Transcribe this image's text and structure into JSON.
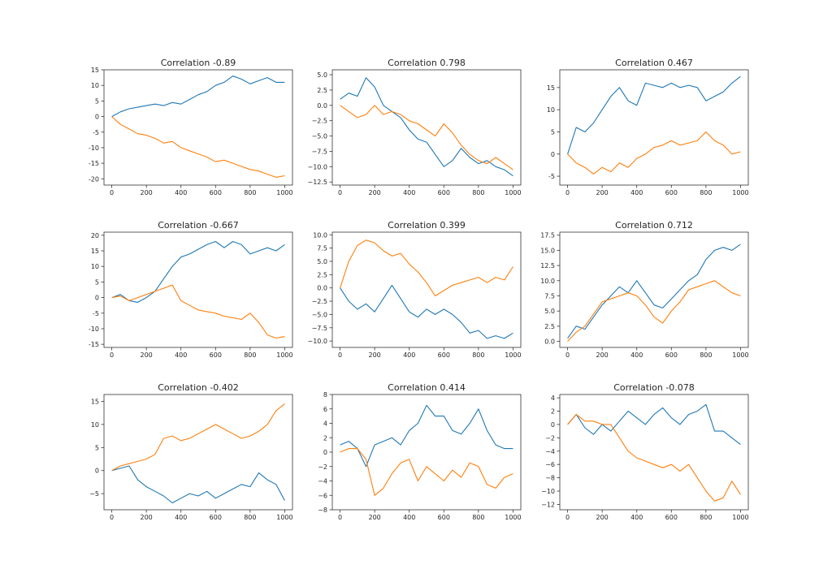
{
  "colors": {
    "series_1": "#1f77b4",
    "series_2": "#ff7f0e"
  },
  "chart_data": [
    {
      "type": "line",
      "title": "Correlation -0.89",
      "xlim": [
        -45,
        1045
      ],
      "ylim": [
        -22,
        15
      ],
      "xticks": [
        0,
        200,
        400,
        600,
        800,
        1000
      ],
      "yticks": [
        -20,
        -15,
        -10,
        -5,
        0,
        5,
        10,
        15
      ],
      "x": [
        0,
        50,
        100,
        150,
        200,
        250,
        300,
        350,
        400,
        450,
        500,
        550,
        600,
        650,
        700,
        750,
        800,
        850,
        900,
        950,
        1000
      ],
      "series": [
        {
          "values": [
            0,
            1.5,
            2.5,
            3,
            3.5,
            4,
            3.5,
            4.5,
            4,
            5.5,
            7,
            8,
            10,
            11,
            13,
            12,
            10.5,
            11.5,
            12.5,
            11,
            11
          ]
        },
        {
          "values": [
            0,
            -2.5,
            -4,
            -5.5,
            -6,
            -7,
            -8.5,
            -8,
            -10,
            -11,
            -12,
            -13,
            -14.5,
            -14,
            -15,
            -16,
            -17,
            -17.5,
            -18.5,
            -19.5,
            -19
          ]
        }
      ]
    },
    {
      "type": "line",
      "title": "Correlation 0.798",
      "xlim": [
        -45,
        1045
      ],
      "ylim": [
        -13,
        5.8
      ],
      "xticks": [
        0,
        200,
        400,
        600,
        800,
        1000
      ],
      "yticks": [
        -12.5,
        -10.0,
        -7.5,
        -5.0,
        -2.5,
        0.0,
        2.5,
        5.0
      ],
      "ytick_labels": [
        "−12.5",
        "−10.0",
        "−7.5",
        "−5.0",
        "−2.5",
        "0.0",
        "2.5",
        "5.0"
      ],
      "x": [
        0,
        50,
        100,
        150,
        200,
        250,
        300,
        350,
        400,
        450,
        500,
        550,
        600,
        650,
        700,
        750,
        800,
        850,
        900,
        950,
        1000
      ],
      "series": [
        {
          "values": [
            1,
            2,
            1.5,
            4.5,
            3,
            0,
            -1,
            -2,
            -4,
            -5.5,
            -6,
            -8,
            -10,
            -9,
            -7,
            -8.5,
            -9.5,
            -9,
            -10,
            -10.5,
            -11.5
          ]
        },
        {
          "values": [
            0,
            -1,
            -2,
            -1.5,
            0,
            -1.5,
            -1,
            -1.5,
            -2.5,
            -3,
            -4,
            -5,
            -3,
            -4.5,
            -6.5,
            -8,
            -9,
            -9.5,
            -8.5,
            -9.5,
            -10.5
          ]
        }
      ]
    },
    {
      "type": "line",
      "title": "Correlation 0.467",
      "xlim": [
        -45,
        1045
      ],
      "ylim": [
        -7,
        19
      ],
      "xticks": [
        0,
        200,
        400,
        600,
        800,
        1000
      ],
      "yticks": [
        -5,
        0,
        5,
        10,
        15
      ],
      "x": [
        0,
        50,
        100,
        150,
        200,
        250,
        300,
        350,
        400,
        450,
        500,
        550,
        600,
        650,
        700,
        750,
        800,
        850,
        900,
        950,
        1000
      ],
      "series": [
        {
          "values": [
            0,
            6,
            5,
            7,
            10,
            13,
            15,
            12,
            11,
            16,
            15.5,
            15,
            16,
            15,
            15.5,
            15,
            12,
            13,
            14,
            16,
            17.5
          ]
        },
        {
          "values": [
            0,
            -2,
            -3,
            -4.5,
            -3,
            -4,
            -2,
            -3,
            -1,
            0,
            1.5,
            2,
            3,
            2,
            2.5,
            3,
            5,
            3,
            2,
            0,
            0.5
          ]
        }
      ]
    },
    {
      "type": "line",
      "title": "Correlation -0.667",
      "xlim": [
        -45,
        1045
      ],
      "ylim": [
        -16,
        21
      ],
      "xticks": [
        0,
        200,
        400,
        600,
        800,
        1000
      ],
      "yticks": [
        -15,
        -10,
        -5,
        0,
        5,
        10,
        15,
        20
      ],
      "x": [
        0,
        50,
        100,
        150,
        200,
        250,
        300,
        350,
        400,
        450,
        500,
        550,
        600,
        650,
        700,
        750,
        800,
        850,
        900,
        950,
        1000
      ],
      "series": [
        {
          "values": [
            0,
            1,
            -1,
            -1.5,
            0,
            2,
            6,
            10,
            13,
            14,
            15.5,
            17,
            18,
            16,
            18,
            17,
            14,
            15,
            16,
            15,
            17
          ]
        },
        {
          "values": [
            0,
            0.5,
            -1,
            0,
            1,
            2,
            3,
            4,
            -1,
            -2.5,
            -4,
            -4.5,
            -5,
            -6,
            -6.5,
            -7,
            -5,
            -8,
            -12,
            -13,
            -12.5
          ]
        }
      ]
    },
    {
      "type": "line",
      "title": "Correlation 0.399",
      "xlim": [
        -45,
        1045
      ],
      "ylim": [
        -11.2,
        10.5
      ],
      "xticks": [
        0,
        200,
        400,
        600,
        800,
        1000
      ],
      "yticks": [
        -10.0,
        -7.5,
        -5.0,
        -2.5,
        0.0,
        2.5,
        5.0,
        7.5,
        10.0
      ],
      "ytick_labels": [
        "−10.0",
        "−7.5",
        "−5.0",
        "−2.5",
        "0.0",
        "2.5",
        "5.0",
        "7.5",
        "10.0"
      ],
      "x": [
        0,
        50,
        100,
        150,
        200,
        250,
        300,
        350,
        400,
        450,
        500,
        550,
        600,
        650,
        700,
        750,
        800,
        850,
        900,
        950,
        1000
      ],
      "series": [
        {
          "values": [
            0,
            -2.5,
            -4,
            -3,
            -4.5,
            -2,
            0.5,
            -2,
            -4.5,
            -5.5,
            -4,
            -5,
            -4,
            -5,
            -6.5,
            -8.5,
            -8,
            -9.5,
            -9,
            -9.5,
            -8.5
          ]
        },
        {
          "values": [
            0,
            5,
            8,
            9,
            8.5,
            7,
            6,
            6.5,
            4.5,
            3,
            1,
            -1.5,
            -0.5,
            0.5,
            1,
            1.5,
            2,
            1,
            2,
            1.5,
            4
          ]
        }
      ]
    },
    {
      "type": "line",
      "title": "Correlation 0.712",
      "xlim": [
        -45,
        1045
      ],
      "ylim": [
        -1,
        18
      ],
      "xticks": [
        0,
        200,
        400,
        600,
        800,
        1000
      ],
      "yticks": [
        0.0,
        2.5,
        5.0,
        7.5,
        10.0,
        12.5,
        15.0,
        17.5
      ],
      "ytick_labels": [
        "0.0",
        "2.5",
        "5.0",
        "7.5",
        "10.0",
        "12.5",
        "15.0",
        "17.5"
      ],
      "x": [
        0,
        50,
        100,
        150,
        200,
        250,
        300,
        350,
        400,
        450,
        500,
        550,
        600,
        650,
        700,
        750,
        800,
        850,
        900,
        950,
        1000
      ],
      "series": [
        {
          "values": [
            0.5,
            2.5,
            2,
            4,
            6,
            7.5,
            9,
            8,
            10,
            8,
            6,
            5.5,
            7,
            8.5,
            10,
            11,
            13.5,
            15,
            15.5,
            15,
            16
          ]
        },
        {
          "values": [
            0,
            1.5,
            2.5,
            4.5,
            6.5,
            7,
            7.5,
            8,
            7.5,
            6,
            4,
            3,
            5,
            6.5,
            8.5,
            9,
            9.5,
            10,
            9,
            8,
            7.5
          ]
        }
      ]
    },
    {
      "type": "line",
      "title": "Correlation -0.402",
      "xlim": [
        -45,
        1045
      ],
      "ylim": [
        -8.5,
        16.5
      ],
      "xticks": [
        0,
        200,
        400,
        600,
        800,
        1000
      ],
      "yticks": [
        -5,
        0,
        5,
        10,
        15
      ],
      "ytick_labels": [
        "−5",
        "0",
        "5",
        "10",
        "15"
      ],
      "x": [
        0,
        50,
        100,
        150,
        200,
        250,
        300,
        350,
        400,
        450,
        500,
        550,
        600,
        650,
        700,
        750,
        800,
        850,
        900,
        950,
        1000
      ],
      "series": [
        {
          "values": [
            0,
            0.5,
            1,
            -2,
            -3.5,
            -4.5,
            -5.5,
            -7,
            -6,
            -5,
            -5.5,
            -4.5,
            -6,
            -5,
            -4,
            -3,
            -3.5,
            -0.5,
            -2,
            -3,
            -6.5
          ]
        },
        {
          "values": [
            0,
            1,
            1.5,
            2,
            2.5,
            3.5,
            7,
            7.5,
            6.5,
            7,
            8,
            9,
            10,
            9,
            8,
            7,
            7.5,
            8.5,
            10,
            13,
            14.5
          ]
        }
      ]
    },
    {
      "type": "line",
      "title": "Correlation 0.414",
      "xlim": [
        -45,
        1045
      ],
      "ylim": [
        -8,
        8
      ],
      "xticks": [
        0,
        200,
        400,
        600,
        800,
        1000
      ],
      "yticks": [
        -8,
        -6,
        -4,
        -2,
        0,
        2,
        4,
        6,
        8
      ],
      "ytick_labels": [
        "−8",
        "−6",
        "−4",
        "−2",
        "0",
        "2",
        "4",
        "6",
        "8"
      ],
      "x": [
        0,
        50,
        100,
        150,
        200,
        250,
        300,
        350,
        400,
        450,
        500,
        550,
        600,
        650,
        700,
        750,
        800,
        850,
        900,
        950,
        1000
      ],
      "series": [
        {
          "values": [
            1,
            1.5,
            0.5,
            -2,
            1,
            1.5,
            2,
            1,
            3,
            4,
            6.5,
            5,
            5,
            3,
            2.5,
            4,
            6,
            3,
            1,
            0.5,
            0.5
          ]
        },
        {
          "values": [
            0,
            0.5,
            0.5,
            -1,
            -6,
            -5,
            -3,
            -1.5,
            -1,
            -4,
            -2,
            -3,
            -4,
            -2.5,
            -3.5,
            -1.5,
            -2,
            -4.5,
            -5,
            -3.5,
            -3
          ]
        }
      ]
    },
    {
      "type": "line",
      "title": "Correlation -0.078",
      "xlim": [
        -45,
        1045
      ],
      "ylim": [
        -12.8,
        4.5
      ],
      "xticks": [
        0,
        200,
        400,
        600,
        800,
        1000
      ],
      "yticks": [
        -12,
        -10,
        -8,
        -6,
        -4,
        -2,
        0,
        2,
        4
      ],
      "ytick_labels": [
        "−12",
        "−10",
        "−8",
        "−6",
        "−4",
        "−2",
        "0",
        "2",
        "4"
      ],
      "x": [
        0,
        50,
        100,
        150,
        200,
        250,
        300,
        350,
        400,
        450,
        500,
        550,
        600,
        650,
        700,
        750,
        800,
        850,
        900,
        950,
        1000
      ],
      "series": [
        {
          "values": [
            0,
            1.5,
            -0.5,
            -1.5,
            0,
            -1,
            0.5,
            2,
            1,
            0,
            1.5,
            2.5,
            1,
            0,
            1.5,
            2,
            3,
            -1,
            -1,
            -2,
            -3
          ]
        },
        {
          "values": [
            0,
            1.5,
            0.5,
            0.5,
            0,
            0,
            -2,
            -4,
            -5,
            -5.5,
            -6,
            -6.5,
            -6,
            -7,
            -6,
            -8,
            -10,
            -11.5,
            -11,
            -8.5,
            -10.5
          ]
        }
      ]
    }
  ]
}
